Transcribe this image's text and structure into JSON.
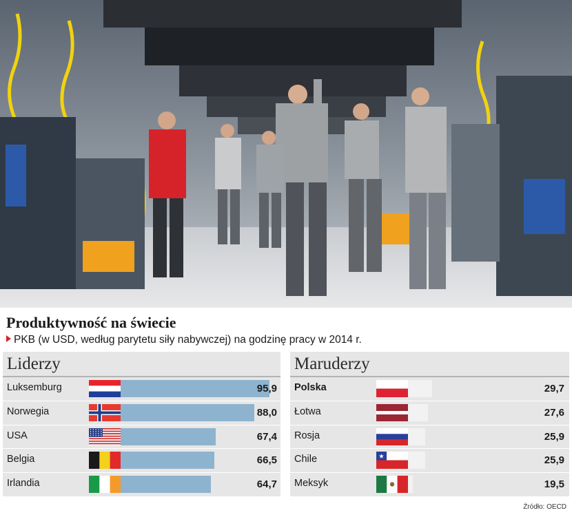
{
  "title": "Produktywność na świecie",
  "subtitle": "PKB (w USD, według parytetu siły nabywczej) na godzinę pracy w 2014 r.",
  "source": "Źródło: OECD",
  "colors": {
    "leader_bar": "#8db3cf",
    "laggard_bar": "#f2f2f2",
    "panel_bg": "#e6e6e6",
    "accent": "#d6262a"
  },
  "chart_data": [
    {
      "type": "bar",
      "title": "Liderzy",
      "categories": [
        "Luksemburg",
        "Norwegia",
        "USA",
        "Belgia",
        "Irlandia"
      ],
      "values": [
        95.9,
        88.0,
        67.4,
        66.5,
        64.7
      ],
      "value_labels": [
        "95,9",
        "88,0",
        "67,4",
        "66,5",
        "64,7"
      ],
      "flags": [
        "luxembourg-flag",
        "norway-flag",
        "usa-flag",
        "belgium-flag",
        "ireland-flag"
      ],
      "xlim": [
        0,
        95.9
      ]
    },
    {
      "type": "bar",
      "title": "Maruderzy",
      "categories": [
        "Polska",
        "Łotwa",
        "Rosja",
        "Chile",
        "Meksyk"
      ],
      "values": [
        29.7,
        27.6,
        25.9,
        25.9,
        19.5
      ],
      "value_labels": [
        "29,7",
        "27,6",
        "25,9",
        "25,9",
        "19,5"
      ],
      "flags": [
        "poland-flag",
        "latvia-flag",
        "russia-flag",
        "chile-flag",
        "mexico-flag"
      ],
      "xlim": [
        0,
        95.9
      ]
    }
  ]
}
